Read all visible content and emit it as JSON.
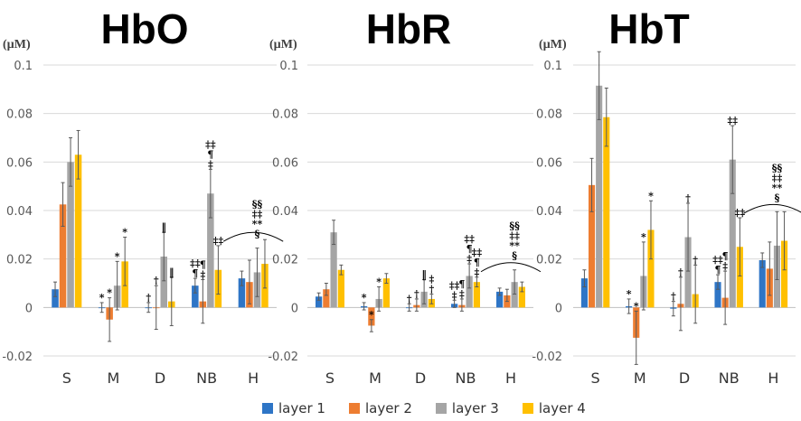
{
  "chart_data": [
    {
      "type": "bar",
      "title": "HbO",
      "unit": "(µM)",
      "categories": [
        "S",
        "M",
        "D",
        "NB",
        "H"
      ],
      "ylim": [
        -0.02,
        0.1
      ],
      "yticks": [
        "-0.02",
        "0",
        "0.02",
        "0.04",
        "0.06",
        "0.08",
        "0.1"
      ],
      "series": [
        {
          "name": "layer 1",
          "values": [
            0.0075,
            0.0,
            0.0,
            0.009,
            0.012
          ],
          "errors": [
            0.003,
            0.002,
            0.002,
            0.003,
            0.003
          ]
        },
        {
          "name": "layer 2",
          "values": [
            0.0425,
            -0.005,
            0.0,
            0.0025,
            0.0105
          ],
          "errors": [
            0.009,
            0.009,
            0.009,
            0.009,
            0.009
          ]
        },
        {
          "name": "layer 3",
          "values": [
            0.06,
            0.009,
            0.021,
            0.047,
            0.0145
          ],
          "errors": [
            0.01,
            0.01,
            0.01,
            0.01,
            0.01
          ]
        },
        {
          "name": "layer 4",
          "values": [
            0.063,
            0.019,
            0.0025,
            0.0155,
            0.018
          ],
          "errors": [
            0.01,
            0.01,
            0.01,
            0.01,
            0.01
          ]
        }
      ],
      "annotations": [
        {
          "category": "M",
          "series": "layer 1",
          "text": "*"
        },
        {
          "category": "M",
          "series": "layer 2",
          "text": "*"
        },
        {
          "category": "M",
          "series": "layer 3",
          "text": "*"
        },
        {
          "category": "M",
          "series": "layer 4",
          "text": "*"
        },
        {
          "category": "D",
          "series": "layer 1",
          "text": "†"
        },
        {
          "category": "D",
          "series": "layer 2",
          "text": "†"
        },
        {
          "category": "D",
          "series": "layer 3",
          "text": "‖"
        },
        {
          "category": "D",
          "series": "layer 4",
          "text": "‖"
        },
        {
          "category": "NB",
          "series": "layer 1",
          "text": "‡‡\n¶"
        },
        {
          "category": "NB",
          "series": "layer 2",
          "text": "¶\n‡"
        },
        {
          "category": "NB",
          "series": "layer 3",
          "text": "‡‡\n¶\n‡"
        },
        {
          "category": "NB",
          "series": "layer 4",
          "text": "‡‡"
        },
        {
          "category": "H",
          "series": "layer 3",
          "text": "§§\n‡‡\n**\n§"
        }
      ]
    },
    {
      "type": "bar",
      "title": "HbR",
      "unit": "(µM)",
      "categories": [
        "S",
        "M",
        "D",
        "NB",
        "H"
      ],
      "ylim": [
        -0.02,
        0.1
      ],
      "yticks": [
        "-0.02",
        "0",
        "0.02",
        "0.04",
        "0.06",
        "0.08",
        "0.1"
      ],
      "series": [
        {
          "name": "layer 1",
          "values": [
            0.0045,
            0.0005,
            0.0,
            0.0015,
            0.0065
          ],
          "errors": [
            0.0015,
            0.0015,
            0.0015,
            0.0015,
            0.0015
          ]
        },
        {
          "name": "layer 2",
          "values": [
            0.0075,
            -0.0075,
            0.001,
            0.001,
            0.005
          ],
          "errors": [
            0.0025,
            0.0025,
            0.0025,
            0.0025,
            0.0025
          ]
        },
        {
          "name": "layer 3",
          "values": [
            0.031,
            0.0035,
            0.0065,
            0.013,
            0.0105
          ],
          "errors": [
            0.005,
            0.005,
            0.005,
            0.005,
            0.005
          ]
        },
        {
          "name": "layer 4",
          "values": [
            0.0155,
            0.012,
            0.0035,
            0.0105,
            0.0085
          ],
          "errors": [
            0.002,
            0.002,
            0.002,
            0.002,
            0.002
          ]
        }
      ],
      "annotations": [
        {
          "category": "M",
          "series": "layer 1",
          "text": "*"
        },
        {
          "category": "M",
          "series": "layer 2",
          "text": "*"
        },
        {
          "category": "M",
          "series": "layer 3",
          "text": "*"
        },
        {
          "category": "D",
          "series": "layer 1",
          "text": "†"
        },
        {
          "category": "D",
          "series": "layer 2",
          "text": "†"
        },
        {
          "category": "D",
          "series": "layer 3",
          "text": "‖"
        },
        {
          "category": "D",
          "series": "layer 4",
          "text": "‡\n†"
        },
        {
          "category": "NB",
          "series": "layer 1",
          "text": "‡‡\n‡"
        },
        {
          "category": "NB",
          "series": "layer 2",
          "text": "¶\n‡"
        },
        {
          "category": "NB",
          "series": "layer 3",
          "text": "‡‡\n¶\n‡"
        },
        {
          "category": "NB",
          "series": "layer 4",
          "text": "‡‡\n¶\n‡"
        },
        {
          "category": "H",
          "series": "layer 3",
          "text": "§§\n‡‡\n**\n§"
        }
      ]
    },
    {
      "type": "bar",
      "title": "HbT",
      "unit": "(µM)",
      "categories": [
        "S",
        "M",
        "D",
        "NB",
        "H"
      ],
      "ylim": [
        -0.02,
        0.1
      ],
      "yticks": [
        "-0.02",
        "0",
        "0.02",
        "0.04",
        "0.06",
        "0.08",
        "0.1"
      ],
      "series": [
        {
          "name": "layer 1",
          "values": [
            0.012,
            0.0005,
            -0.0005,
            0.0105,
            0.0195
          ],
          "errors": [
            0.0035,
            0.003,
            0.003,
            0.003,
            0.003
          ]
        },
        {
          "name": "layer 2",
          "values": [
            0.0505,
            -0.0125,
            0.0015,
            0.004,
            0.016
          ],
          "errors": [
            0.011,
            0.011,
            0.011,
            0.011,
            0.011
          ]
        },
        {
          "name": "layer 3",
          "values": [
            0.0915,
            0.013,
            0.029,
            0.061,
            0.0255
          ],
          "errors": [
            0.014,
            0.014,
            0.014,
            0.014,
            0.014
          ]
        },
        {
          "name": "layer 4",
          "values": [
            0.0785,
            0.032,
            0.0055,
            0.025,
            0.0275
          ],
          "errors": [
            0.012,
            0.012,
            0.012,
            0.012,
            0.012
          ]
        }
      ],
      "annotations": [
        {
          "category": "M",
          "series": "layer 1",
          "text": "*"
        },
        {
          "category": "M",
          "series": "layer 2",
          "text": "*"
        },
        {
          "category": "M",
          "series": "layer 3",
          "text": "*"
        },
        {
          "category": "M",
          "series": "layer 4",
          "text": "*"
        },
        {
          "category": "D",
          "series": "layer 1",
          "text": "†"
        },
        {
          "category": "D",
          "series": "layer 2",
          "text": "†"
        },
        {
          "category": "D",
          "series": "layer 3",
          "text": "†"
        },
        {
          "category": "D",
          "series": "layer 4",
          "text": "†"
        },
        {
          "category": "NB",
          "series": "layer 1",
          "text": "‡‡\n¶"
        },
        {
          "category": "NB",
          "series": "layer 2",
          "text": "¶\n‡"
        },
        {
          "category": "NB",
          "series": "layer 3",
          "text": "‡‡"
        },
        {
          "category": "NB",
          "series": "layer 4",
          "text": "‡‡"
        },
        {
          "category": "H",
          "series": "layer 3",
          "text": "§§\n‡‡\n**\n§"
        }
      ]
    }
  ],
  "legend": [
    {
      "label": "layer 1",
      "color": "#2e75c6"
    },
    {
      "label": "layer 2",
      "color": "#ed7d31"
    },
    {
      "label": "layer 3",
      "color": "#a5a5a5"
    },
    {
      "label": "layer 4",
      "color": "#ffc000"
    }
  ],
  "styles": {
    "bar_colors": [
      "#2e75c6",
      "#ed7d31",
      "#a5a5a5",
      "#ffc000"
    ],
    "grid_color": "#d9d9d9",
    "text_color": "#595959"
  }
}
